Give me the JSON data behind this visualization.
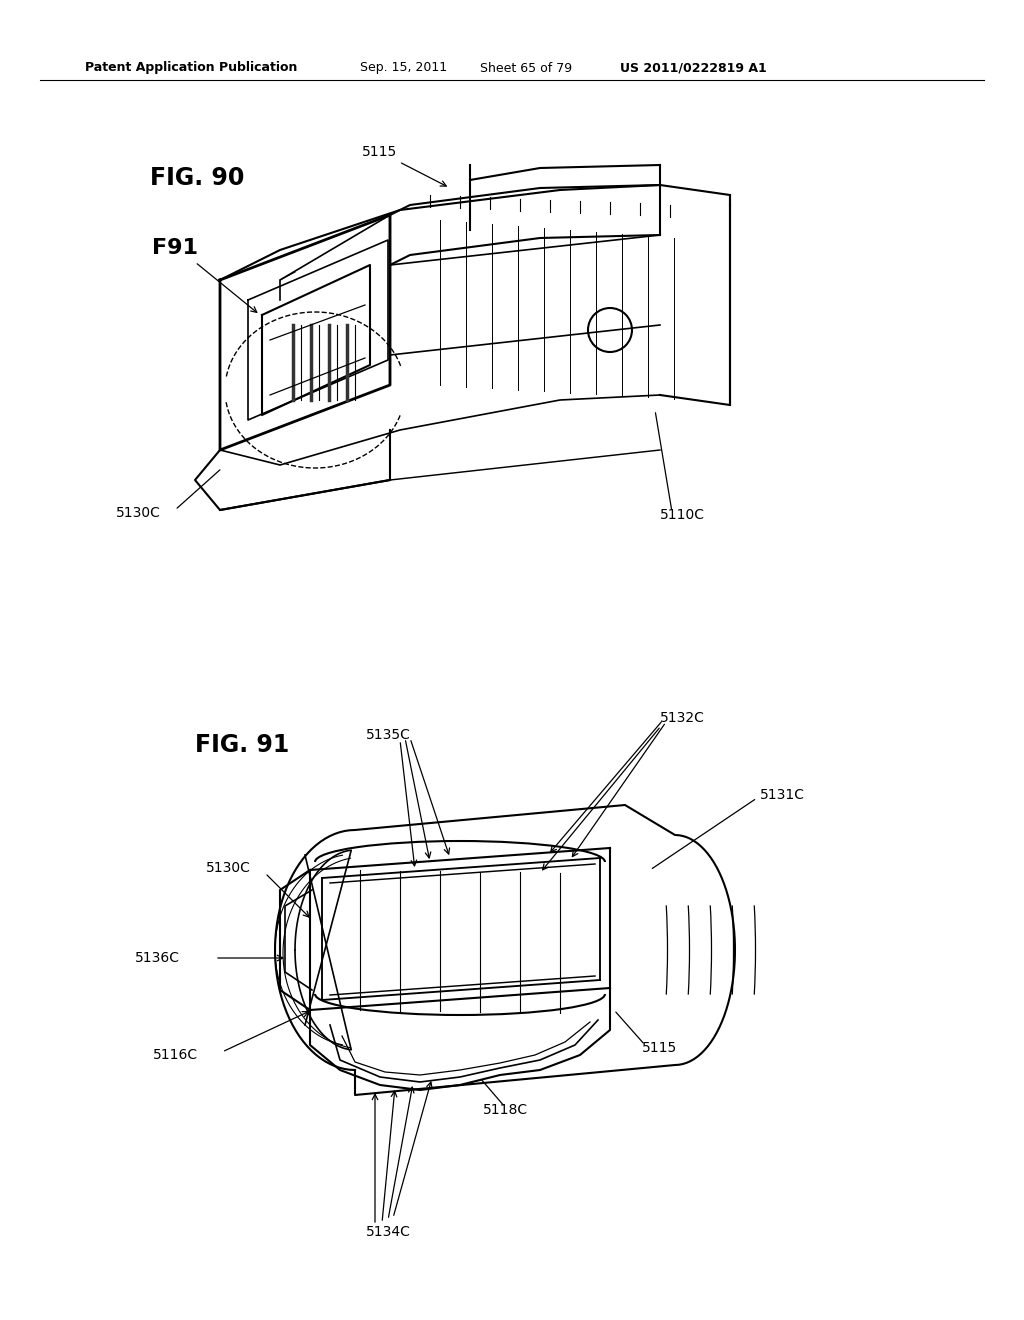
{
  "bg_color": "#ffffff",
  "header_text": "Patent Application Publication",
  "header_date": "Sep. 15, 2011",
  "header_sheet": "Sheet 65 of 79",
  "header_patent": "US 2011/0222819 A1",
  "fig90_label": "FIG. 90",
  "fig91_label": "FIG. 91",
  "fig90_callout_F91": "F91",
  "line_color": "#000000",
  "text_color": "#000000",
  "line_width": 1.5,
  "fig_label_fontsize": 14,
  "callout_fontsize": 10
}
